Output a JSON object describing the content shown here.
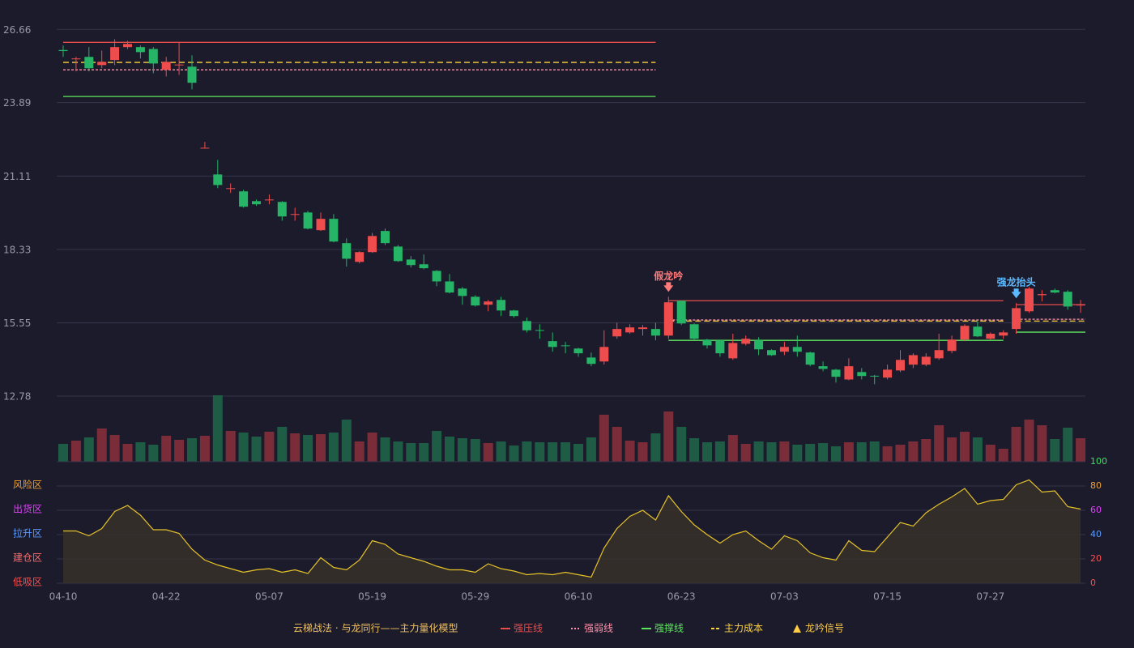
{
  "chart_data": [
    {
      "type": "candlestick",
      "categories": [
        "04-10",
        null,
        null,
        null,
        null,
        null,
        null,
        null,
        "04-22",
        null,
        null,
        null,
        null,
        null,
        null,
        null,
        "05-07",
        null,
        null,
        null,
        null,
        null,
        null,
        null,
        "05-19",
        null,
        null,
        null,
        null,
        null,
        null,
        null,
        "05-29",
        null,
        null,
        null,
        null,
        null,
        null,
        null,
        "06-10",
        null,
        null,
        null,
        null,
        null,
        null,
        null,
        "06-23",
        null,
        null,
        null,
        null,
        null,
        null,
        null,
        "07-03",
        null,
        null,
        null,
        null,
        null,
        null,
        null,
        "07-15",
        null,
        null,
        null,
        null,
        null,
        null,
        null,
        "07-27",
        null,
        null,
        null,
        null,
        null,
        null,
        null
      ],
      "open": [
        25.88,
        25.53,
        25.62,
        25.31,
        25.5,
        25.99,
        25.99,
        25.92,
        25.13,
        25.31,
        25.25,
        22.17,
        21.17,
        20.64,
        20.53,
        20.16,
        20.21,
        20.13,
        19.66,
        19.73,
        19.06,
        19.49,
        18.57,
        17.86,
        18.23,
        19.03,
        18.44,
        17.95,
        17.77,
        17.52,
        17.12,
        16.85,
        16.54,
        16.24,
        16.42,
        16.02,
        15.62,
        15.28,
        14.86,
        14.7,
        14.58,
        14.24,
        14.09,
        15.04,
        15.19,
        15.32,
        15.32,
        15.07,
        16.39,
        15.5,
        14.92,
        14.89,
        14.21,
        14.76,
        14.89,
        14.52,
        14.46,
        14.64,
        14.43,
        13.91,
        13.78,
        13.41,
        13.69,
        13.55,
        13.48,
        13.75,
        13.97,
        13.97,
        14.21,
        14.49,
        14.92,
        15.41,
        14.95,
        15.07,
        15.32,
        15.99,
        16.6,
        16.79,
        16.73,
        16.23
      ],
      "high": [
        26.05,
        25.62,
        25.99,
        25.86,
        26.29,
        26.23,
        26.05,
        25.99,
        25.62,
        26.17,
        25.68,
        22.4,
        21.72,
        20.83,
        20.59,
        20.22,
        20.41,
        20.16,
        19.91,
        19.79,
        19.73,
        19.67,
        18.75,
        18.26,
        18.96,
        19.12,
        18.5,
        18.08,
        18.14,
        17.55,
        17.4,
        16.91,
        16.6,
        16.42,
        16.54,
        16.05,
        15.75,
        15.5,
        15.19,
        14.83,
        14.61,
        14.43,
        15.27,
        15.56,
        15.5,
        15.47,
        15.56,
        16.54,
        16.39,
        15.53,
        14.95,
        14.92,
        15.14,
        15.07,
        15.01,
        14.55,
        14.83,
        15.07,
        14.46,
        14.09,
        13.81,
        14.21,
        13.84,
        13.58,
        13.97,
        14.52,
        14.4,
        14.4,
        15.14,
        15.07,
        15.5,
        15.62,
        15.19,
        15.27,
        16.3,
        16.91,
        16.79,
        16.85,
        16.79,
        16.42
      ],
      "low": [
        25.62,
        25.07,
        25.07,
        25.19,
        25.31,
        25.92,
        25.56,
        25.0,
        24.88,
        24.94,
        24.39,
        22.15,
        20.65,
        20.47,
        19.91,
        19.98,
        20.04,
        19.42,
        19.42,
        19.09,
        19.03,
        18.6,
        17.68,
        17.8,
        18.2,
        18.5,
        17.86,
        17.65,
        17.58,
        16.94,
        16.67,
        16.24,
        16.17,
        15.99,
        15.81,
        15.75,
        15.19,
        14.95,
        14.46,
        14.4,
        14.27,
        13.91,
        13.97,
        14.95,
        15.14,
        15.07,
        14.89,
        14.95,
        15.47,
        14.92,
        14.58,
        14.27,
        14.15,
        14.7,
        14.33,
        14.3,
        14.33,
        14.27,
        13.91,
        13.72,
        13.29,
        13.38,
        13.41,
        13.23,
        13.41,
        13.69,
        13.84,
        13.91,
        14.15,
        14.4,
        14.86,
        15.01,
        14.92,
        14.95,
        15.14,
        15.93,
        16.36,
        16.67,
        16.05,
        15.93
      ],
      "close": [
        25.84,
        25.56,
        25.19,
        25.43,
        25.99,
        26.11,
        25.8,
        25.37,
        25.43,
        25.33,
        24.64,
        22.18,
        20.77,
        20.65,
        19.95,
        20.04,
        20.22,
        19.58,
        19.67,
        19.12,
        19.49,
        18.63,
        17.98,
        18.23,
        18.84,
        18.57,
        17.89,
        17.74,
        17.62,
        17.12,
        16.7,
        16.57,
        16.21,
        16.36,
        16.02,
        15.81,
        15.27,
        15.26,
        14.64,
        14.67,
        14.4,
        14.0,
        14.64,
        15.32,
        15.38,
        15.38,
        15.07,
        16.33,
        15.53,
        14.95,
        14.7,
        14.4,
        14.79,
        14.95,
        14.55,
        14.33,
        14.64,
        14.46,
        13.97,
        13.81,
        13.51,
        13.91,
        13.54,
        13.53,
        13.78,
        14.15,
        14.33,
        14.27,
        14.52,
        14.92,
        15.44,
        15.04,
        15.14,
        15.19,
        16.11,
        16.85,
        16.64,
        16.7,
        16.17,
        16.24
      ],
      "up_color": "#ef4d4d",
      "down_color": "#26b567",
      "ylim": [
        12.78,
        27.16
      ],
      "yticks": [
        12.78,
        15.55,
        18.33,
        21.11,
        23.89,
        26.66
      ],
      "grid": true,
      "levels": [
        {
          "name": "强压线",
          "color": "#e84d4d",
          "style": "solid",
          "segments": [
            {
              "start": 0,
              "end": 46,
              "value": 26.17
            },
            {
              "start": 47,
              "end": 73,
              "value": 16.39
            },
            {
              "start": 74,
              "end": 79,
              "value": 16.24
            }
          ]
        },
        {
          "name": "强弱线",
          "color": "#ff8fa8",
          "style": "dotted",
          "segments": [
            {
              "start": 0,
              "end": 46,
              "value": 25.13
            },
            {
              "start": 47,
              "end": 73,
              "value": 15.66
            },
            {
              "start": 74,
              "end": 79,
              "value": 15.69
            }
          ]
        },
        {
          "name": "强撑线",
          "color": "#5ce65c",
          "style": "solid",
          "segments": [
            {
              "start": 0,
              "end": 46,
              "value": 24.12
            },
            {
              "start": 47,
              "end": 73,
              "value": 14.89
            },
            {
              "start": 74,
              "end": 79,
              "value": 15.2
            }
          ]
        },
        {
          "name": "主力成本",
          "color": "#ffd23f",
          "style": "dashed",
          "segments": [
            {
              "start": 0,
              "end": 46,
              "value": 25.41
            },
            {
              "start": 47,
              "end": 73,
              "value": 15.62
            },
            {
              "start": 74,
              "end": 79,
              "value": 15.62
            }
          ]
        }
      ],
      "signals": [
        {
          "index": 47,
          "label": "假龙吟",
          "color": "#ff7a7a"
        },
        {
          "index": 74,
          "label": "强龙抬头",
          "color": "#5cb8ff"
        }
      ],
      "signal_legend": {
        "name": "龙吟信号",
        "color": "#ffcc44"
      },
      "legend_title": "云梯战法 · 与龙同行——主力量化模型",
      "legend_title_color": "#f0c060"
    },
    {
      "type": "volume",
      "values": [
        22,
        26,
        30,
        41,
        33,
        22,
        24,
        21,
        32,
        27,
        29,
        32,
        82,
        38,
        36,
        31,
        37,
        43,
        35,
        33,
        34,
        36,
        52,
        25,
        36,
        30,
        25,
        23,
        23,
        38,
        31,
        29,
        28,
        23,
        25,
        20,
        25,
        24,
        24,
        24,
        22,
        30,
        58,
        43,
        26,
        24,
        35,
        62,
        43,
        29,
        24,
        25,
        33,
        22,
        25,
        24,
        25,
        21,
        22,
        23,
        19,
        24,
        24,
        25,
        19,
        21,
        25,
        28,
        45,
        30,
        37,
        30,
        21,
        16,
        43,
        52,
        45,
        28,
        42,
        29
      ],
      "up_color": "#7a2d38",
      "down_color": "#1f5c46"
    },
    {
      "type": "area",
      "values": [
        43,
        43,
        39,
        45,
        59,
        64,
        56,
        44,
        44,
        41,
        28,
        19,
        15,
        12,
        9,
        11,
        12,
        9,
        11,
        8,
        21,
        13,
        11,
        19,
        35,
        32,
        24,
        21,
        18,
        14,
        11,
        11,
        9,
        16,
        12,
        10,
        7,
        8,
        7,
        9,
        7,
        5,
        29,
        45,
        55,
        60,
        52,
        72,
        59,
        48,
        40,
        33,
        40,
        43,
        35,
        28,
        39,
        35,
        25,
        21,
        19,
        35,
        27,
        26,
        38,
        50,
        47,
        58,
        65,
        71,
        78,
        65,
        68,
        69,
        81,
        85,
        75,
        76,
        63,
        61
      ],
      "color": "#e6c229",
      "fill": "#36302a",
      "ylim": [
        0,
        100
      ],
      "yticks": [
        {
          "value": 0,
          "label": "低吸区"
        },
        {
          "value": 20,
          "label": "建仓区"
        },
        {
          "value": 40,
          "label": "拉升区"
        },
        {
          "value": 60,
          "label": "出货区"
        },
        {
          "value": 80,
          "label": "风险区"
        }
      ],
      "ytick_colors": [
        "#ff4d4d",
        "#ff6a6a",
        "#5b9bff",
        "#e040fb",
        "#f0a030"
      ],
      "y2lim": [
        0,
        100
      ],
      "y2ticks": [
        0,
        20,
        40,
        60,
        80,
        100
      ],
      "y2tick_colors": [
        "#ff4d4d",
        "#ff4d4d",
        "#5b9bff",
        "#e040fb",
        "#f0a030",
        "#3fdf5f"
      ]
    }
  ]
}
